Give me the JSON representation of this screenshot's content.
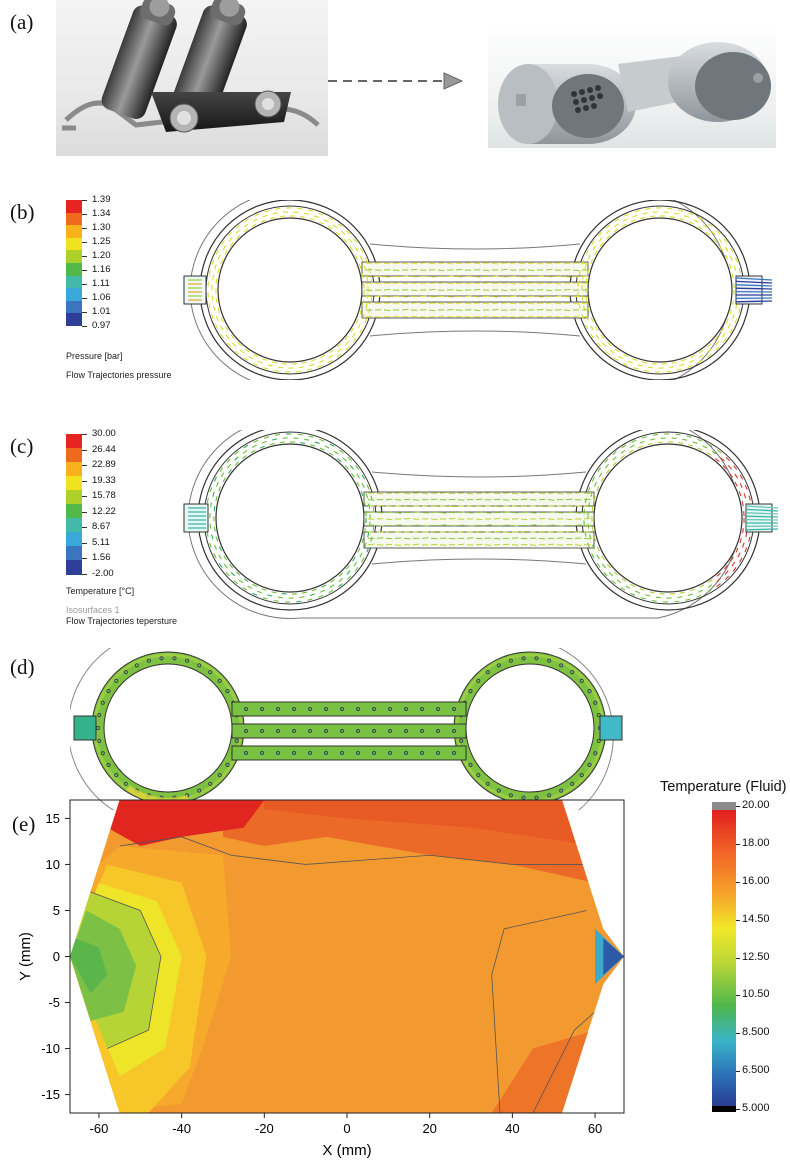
{
  "panels": {
    "a": {
      "label": "(a)"
    },
    "b": {
      "label": "(b)",
      "colorbar": {
        "ticks": [
          "1.39",
          "1.34",
          "1.30",
          "1.25",
          "1.20",
          "1.16",
          "1.11",
          "1.06",
          "1.01",
          "0.97"
        ],
        "colors": [
          "#e52421",
          "#f06a1e",
          "#f7b21c",
          "#f2e11f",
          "#aed12a",
          "#52b848",
          "#43b9a7",
          "#38a9d9",
          "#3a75bd",
          "#2e3f98"
        ],
        "title": "Pressure [bar]",
        "subtitle": "Flow Trajectories pressure"
      }
    },
    "c": {
      "label": "(c)",
      "colorbar": {
        "ticks": [
          "30.00",
          "26.44",
          "22.89",
          "19.33",
          "15.78",
          "12.22",
          "8.67",
          "5.11",
          "1.56",
          "-2.00"
        ],
        "colors": [
          "#e52421",
          "#f06a1e",
          "#f7b21c",
          "#f2e11f",
          "#aed12a",
          "#52b848",
          "#43b9a7",
          "#38a9d9",
          "#3a75bd",
          "#2e3f98"
        ],
        "title": "Temperature [°C]",
        "subtitle1": "Isosurfaces 1",
        "subtitle2": "Flow Trajectories tepersture"
      }
    },
    "d": {
      "label": "(d)"
    },
    "e": {
      "label": "(e)"
    }
  },
  "chart_data": {
    "type": "heatmap",
    "title": "Temperature (Fluid)",
    "xlabel": "X (mm)",
    "ylabel": "Y (mm)",
    "xlim": [
      -67,
      67
    ],
    "ylim": [
      -17,
      17
    ],
    "xticks": [
      -60,
      -40,
      -20,
      0,
      20,
      40,
      60
    ],
    "yticks": [
      15,
      10,
      5,
      0,
      -5,
      -10,
      -15
    ],
    "colorbar": {
      "labels": [
        "20.00",
        "18.00",
        "16.00",
        "14.50",
        "12.50",
        "10.50",
        "8.500",
        "6.500",
        "5.000"
      ],
      "values": [
        20,
        18,
        16,
        14.5,
        12.5,
        10.5,
        8.5,
        6.5,
        5
      ],
      "overflow_color": "#8c8c8c",
      "underflow_color": "#000000"
    },
    "regions": [
      {
        "name": "hot-top",
        "approx_temp": 19.5
      },
      {
        "name": "main-body",
        "approx_temp": 17.5
      },
      {
        "name": "left-cool-zone",
        "approx_temp": 13.5
      },
      {
        "name": "right-edge-cool",
        "approx_temp": 9
      }
    ]
  }
}
